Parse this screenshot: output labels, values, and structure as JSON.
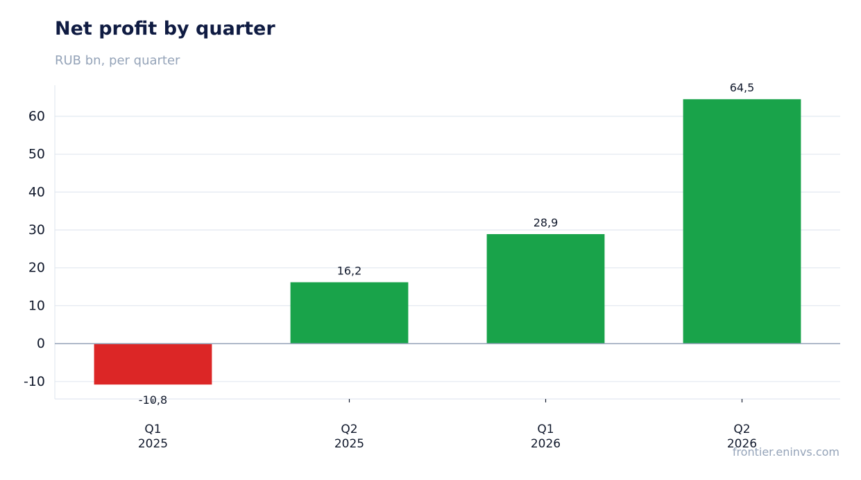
{
  "title": "Net profit by quarter",
  "subtitle": "RUB bn, per quarter",
  "source": "frontier.eninvs.com",
  "colors": {
    "positive": "#19a34a",
    "negative": "#dc2626",
    "grid": "#e2e8f0",
    "zero_line": "#94a3b8",
    "tick_text": "#0f172a",
    "title": "#0f1b42"
  },
  "chart_data": {
    "type": "bar",
    "categories": [
      [
        "Q1",
        "2025"
      ],
      [
        "Q2",
        "2025"
      ],
      [
        "Q1",
        "2026"
      ],
      [
        "Q2",
        "2026"
      ]
    ],
    "values": [
      -10.8,
      16.2,
      28.9,
      64.5
    ],
    "value_labels": [
      "-10,8",
      "16,2",
      "28,9",
      "64,5"
    ],
    "y_ticks": [
      -10,
      0,
      10,
      20,
      30,
      40,
      50,
      60
    ],
    "ylim": [
      -14.6,
      68.2
    ],
    "grid": true,
    "legend": false
  }
}
